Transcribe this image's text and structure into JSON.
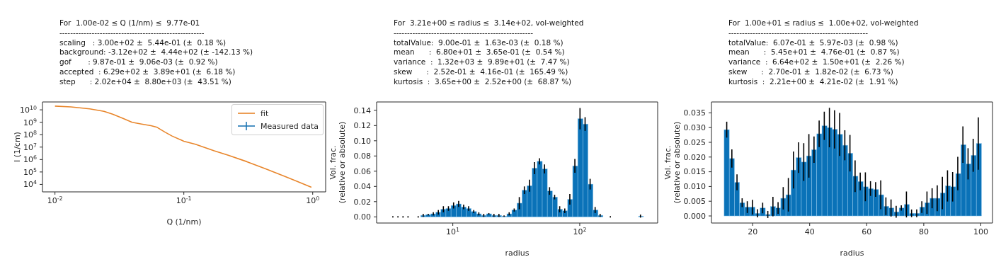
{
  "chart_data": [
    {
      "type": "line",
      "title": "For  1.00e-02 ≤ Q (1/nm) ≤  9.77e-01",
      "annotations": [
        "------------------------------------------------------",
        "scaling   : 3.00e+02 ±  5.44e-01 (±  0.18 %)",
        "background: -3.12e+02 ±  4.44e+02 (± -142.13 %)",
        "gof       : 9.87e-01 ±  9.06e-03 (±  0.92 %)",
        "accepted  : 6.29e+02 ±  3.89e+01 (±  6.18 %)",
        "step      : 2.02e+04 ±  8.80e+03 (±  43.51 %)"
      ],
      "xlabel": "Q (1/nm)",
      "ylabel": "I (1/cm)",
      "log": "xy",
      "legend": "top right",
      "x": [
        0.01,
        0.0133,
        0.0186,
        0.024,
        0.028,
        0.0335,
        0.0397,
        0.047,
        0.0556,
        0.062,
        0.0714,
        0.081,
        0.1,
        0.123,
        0.172,
        0.221,
        0.309,
        0.432,
        0.6,
        0.977
      ],
      "series": [
        {
          "name": "fit",
          "color": "#e8852a",
          "values": [
            20000000000.0,
            17000000000.0,
            12000000000.0,
            7600000000.0,
            4500000000.0,
            2100000000.0,
            1000000000.0,
            720000000.0,
            530000000.0,
            390000000.0,
            160000000.0,
            78000000.0,
            30000000.0,
            17000000.0,
            5000000.0,
            2200000.0,
            670000.0,
            180000.0,
            47000.0,
            5900.0
          ]
        },
        {
          "name": "Measured data",
          "color": "#1f77b4",
          "values": [
            null,
            null,
            null,
            null,
            null,
            null,
            null,
            null,
            null,
            null,
            null,
            null,
            null,
            null,
            null,
            null,
            null,
            null,
            null,
            null
          ],
          "errors": [
            null,
            null,
            null,
            null,
            null,
            null,
            null,
            null,
            null,
            null,
            null,
            null,
            null,
            null,
            null,
            null,
            null,
            null,
            null,
            null
          ]
        }
      ],
      "xlim": [
        0.008,
        1.26
      ],
      "xticks": [
        {
          "value": 0.01,
          "label": "10$^{-2}$"
        },
        {
          "value": 0.1,
          "label": "10$^{-1}$"
        },
        {
          "value": 1,
          "label": "10$^{0}$"
        }
      ],
      "ylim": [
        2500,
        43000000000.0
      ],
      "yticks": [
        {
          "value": 10000.0,
          "label": "10$^{4}$"
        },
        {
          "value": 100000.0,
          "label": "10$^{5}$"
        },
        {
          "value": 1000000.0,
          "label": "10$^{6}$"
        },
        {
          "value": 10000000.0,
          "label": "10$^{7}$"
        },
        {
          "value": 100000000.0,
          "label": "10$^{8}$"
        },
        {
          "value": 1000000000.0,
          "label": "10$^{9}$"
        },
        {
          "value": 10000000000.0,
          "label": "10$^{10}$"
        }
      ]
    },
    {
      "type": "histogram",
      "title": "For  3.21e+00 ≤ radius ≤  3.14e+02, vol-weighted",
      "annotations": [
        "----------------------------------------------------",
        "totalValue:  9.00e-01 ±  1.63e-03 (±  0.18 %)",
        "mean      :  6.80e+01 ±  3.65e-01 (±  0.54 %)",
        "variance  :  1.32e+03 ±  9.89e+01 (±  7.47 %)",
        "skew      :  2.52e-01 ±  4.16e-01 (±  165.49 %)",
        "kurtosis  :  3.65e+00 ±  2.52e+00 (±  68.87 %)"
      ],
      "xlabel": "radius",
      "ylabel": "Vol. frac.\n(relative or absolute)",
      "log": "x",
      "color": "#0a72b8",
      "bins": [
        3.21,
        3.52,
        3.86,
        4.23,
        4.63,
        5.08,
        5.57,
        6.1,
        6.69,
        7.33,
        8.03,
        8.8,
        9.65,
        10.6,
        11.6,
        12.7,
        13.9,
        15.3,
        16.7,
        18.3,
        20.1,
        22,
        24.1,
        26.5,
        29,
        31.8,
        34.9,
        38.2,
        41.9,
        45.9,
        50.3,
        55.1,
        60.4,
        66.2,
        72.6,
        79.6,
        87.2,
        95.6,
        105,
        115,
        126,
        138,
        151,
        166,
        182,
        199,
        218,
        239,
        262,
        287,
        314
      ],
      "values": [
        0,
        0,
        0,
        0,
        0,
        0,
        0.002,
        0.003,
        0.004,
        0.006,
        0.01,
        0.011,
        0.015,
        0.017,
        0.013,
        0.011,
        0.007,
        0.004,
        0.002,
        0.004,
        0.002,
        0.002,
        0.001,
        0.004,
        0.009,
        0.018,
        0.035,
        0.041,
        0.064,
        0.073,
        0.063,
        0.034,
        0.026,
        0.01,
        0.008,
        0.023,
        0.067,
        0.129,
        0.122,
        0.043,
        0.009,
        0.002,
        0,
        0,
        0,
        0,
        0,
        0,
        0,
        0.001
      ],
      "errors": [
        0.001,
        0.001,
        0.001,
        0.001,
        null,
        0.001,
        0.002,
        0.001,
        0.002,
        0.003,
        0.004,
        0.003,
        0.004,
        0.004,
        0.003,
        0.003,
        0.002,
        0.002,
        0.002,
        0.001,
        0.002,
        0.002,
        0.001,
        0.002,
        0.002,
        0.008,
        0.005,
        0.008,
        0.008,
        0.004,
        0.006,
        0.005,
        0.003,
        0.004,
        0.003,
        0.007,
        0.009,
        0.014,
        0.009,
        0.007,
        0.004,
        0.002,
        null,
        0.001,
        null,
        null,
        null,
        null,
        null,
        0.002
      ],
      "xlim": [
        2.51,
        411
      ],
      "xticks": [
        {
          "value": 10,
          "label": "10$^{1}$"
        },
        {
          "value": 100,
          "label": "10$^{2}$"
        }
      ],
      "ylim": [
        -0.0081,
        0.151
      ],
      "yticks": [
        {
          "value": 0,
          "label": "0.00"
        },
        {
          "value": 0.02,
          "label": "0.02"
        },
        {
          "value": 0.04,
          "label": "0.04"
        },
        {
          "value": 0.06,
          "label": "0.06"
        },
        {
          "value": 0.08,
          "label": "0.08"
        },
        {
          "value": 0.1,
          "label": "0.10"
        },
        {
          "value": 0.12,
          "label": "0.12"
        },
        {
          "value": 0.14,
          "label": "0.14"
        }
      ]
    },
    {
      "type": "histogram",
      "title": "For  1.00e+01 ≤ radius ≤  1.00e+02, vol-weighted",
      "annotations": [
        "----------------------------------------------------",
        "totalValue:  6.07e-01 ±  5.97e-03 (±  0.98 %)",
        "mean      :  5.45e+01 ±  4.76e-01 (±  0.87 %)",
        "variance  :  6.64e+02 ±  1.50e+01 (±  2.26 %)",
        "skew      :  2.70e-01 ±  1.82e-02 (±  6.73 %)",
        "kurtosis  :  2.21e+00 ±  4.21e-02 (±  1.91 %)"
      ],
      "xlabel": "radius",
      "ylabel": "Vol. frac.\n(relative or absolute)",
      "color": "#0a72b8",
      "bins": [
        10,
        11.8,
        13.6,
        15.4,
        17.2,
        19,
        20.8,
        22.6,
        24.4,
        26.2,
        28,
        29.8,
        31.6,
        33.4,
        35.2,
        37,
        38.8,
        40.6,
        42.4,
        44.2,
        46,
        47.8,
        49.6,
        51.4,
        53.2,
        55,
        56.8,
        58.6,
        60.4,
        62.2,
        64,
        65.8,
        67.6,
        69.4,
        71.2,
        73,
        74.8,
        76.6,
        78.4,
        80.2,
        82,
        83.8,
        85.6,
        87.4,
        89.2,
        91,
        92.8,
        94.6,
        96.4,
        98.2,
        100
      ],
      "values": [
        0.0293,
        0.0195,
        0.0114,
        0.0045,
        0.003,
        0.003,
        0.0009,
        0.0027,
        0.0005,
        0.0032,
        0.0027,
        0.006,
        0.0072,
        0.0156,
        0.0198,
        0.0183,
        0.0204,
        0.0225,
        0.0279,
        0.0306,
        0.03,
        0.0294,
        0.0277,
        0.024,
        0.0213,
        0.0135,
        0.0117,
        0.0099,
        0.0093,
        0.009,
        0.0072,
        0.0033,
        0.0027,
        0.0014,
        0.0027,
        0.0039,
        0.0009,
        0.0009,
        0.003,
        0.0045,
        0.006,
        0.006,
        0.0078,
        0.0102,
        0.0099,
        0.0144,
        0.0242,
        0.0177,
        0.0206,
        0.0246
      ],
      "errors": [
        0.0027,
        0.0031,
        0.0027,
        0.0015,
        0.002,
        0.0025,
        0.0014,
        0.0018,
        0.0012,
        0.0033,
        0.002,
        0.0038,
        0.0057,
        0.0063,
        0.0052,
        0.0064,
        0.0074,
        0.0045,
        0.0045,
        0.0048,
        0.0067,
        0.0065,
        0.0073,
        0.0051,
        0.0062,
        0.0054,
        0.003,
        0.0049,
        0.0025,
        0.0025,
        0.0049,
        0.003,
        0.0029,
        0.002,
        0.0009,
        0.0044,
        0.0013,
        0.0013,
        0.002,
        0.0038,
        0.0034,
        0.0044,
        0.0055,
        0.0053,
        0.005,
        0.0057,
        0.0062,
        0.0053,
        0.0056,
        0.0089
      ],
      "xlim": [
        5.57,
        104.1
      ],
      "xticks": [
        20,
        40,
        60,
        80,
        100
      ],
      "ylim": [
        -0.0024,
        0.0387
      ],
      "yticks": [
        {
          "value": 0,
          "label": "0.000"
        },
        {
          "value": 0.005,
          "label": "0.005"
        },
        {
          "value": 0.01,
          "label": "0.010"
        },
        {
          "value": 0.015,
          "label": "0.015"
        },
        {
          "value": 0.02,
          "label": "0.020"
        },
        {
          "value": 0.025,
          "label": "0.025"
        },
        {
          "value": 0.03,
          "label": "0.030"
        },
        {
          "value": 0.035,
          "label": "0.035"
        }
      ]
    }
  ]
}
